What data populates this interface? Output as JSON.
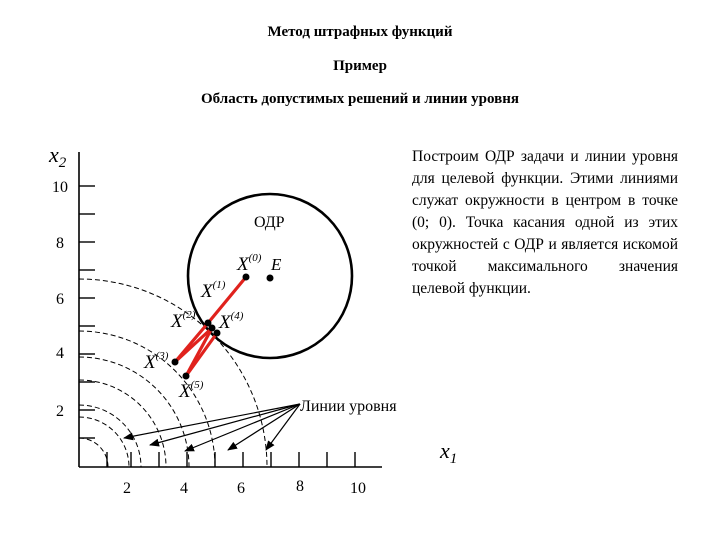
{
  "header": {
    "title": "Метод штрафных функций",
    "subtitle": "Пример",
    "section": "Область допустимых решений и линии уровня"
  },
  "description": "Построим ОДР задачи и линии уровня для целевой функции. Этими линиями служат окружности в центром в точке (0; 0). Точка касания одной из этих окружностей с ОДР и является искомой точкой максимального значения целевой функции.",
  "diagram": {
    "x_axis": {
      "name": "x",
      "sub": "1",
      "ticks": [
        "2",
        "4",
        "6",
        "8",
        "10"
      ]
    },
    "y_axis": {
      "name": "x",
      "sub": "2",
      "ticks": [
        "10",
        "8",
        "6",
        "4",
        "2"
      ]
    },
    "region_label": "ОДР",
    "center_label": "E",
    "level_lines_label": "Линии уровня",
    "points": [
      {
        "name": "X",
        "sup": "(0)"
      },
      {
        "name": "X",
        "sup": "(1)"
      },
      {
        "name": "X",
        "sup": "(2)"
      },
      {
        "name": "X",
        "sup": "(3)"
      },
      {
        "name": "X",
        "sup": "(4)"
      },
      {
        "name": "X",
        "sup": "(5)"
      }
    ],
    "colors": {
      "path": "#e0221d",
      "ink": "#000000"
    }
  }
}
